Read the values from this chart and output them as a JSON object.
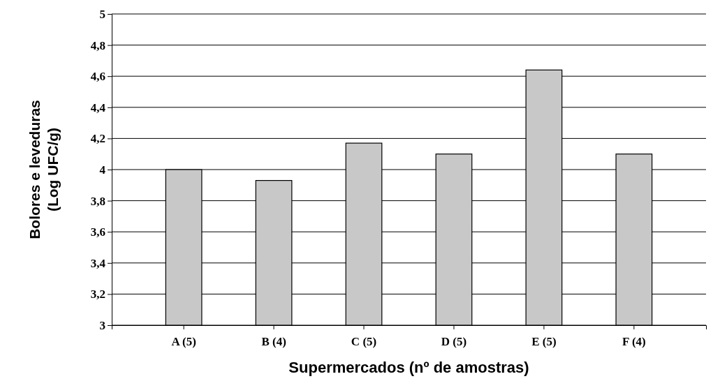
{
  "chart_data": {
    "type": "bar",
    "xlabel": "Supermercados (nº de amostras)",
    "ylabel": "Bolores e leveduras\n(Log UFC/g)",
    "categories": [
      "A (5)",
      "B (4)",
      "C (5)",
      "D (5)",
      "E (5)",
      "F (4)"
    ],
    "values": [
      4.0,
      3.93,
      4.17,
      4.1,
      4.64,
      4.1
    ],
    "color": "#c8c8c8",
    "ylim": [
      3,
      5
    ],
    "yticks": [
      3,
      {
        "value": 3.2,
        "label": "3,2"
      },
      {
        "value": 3.4,
        "label": "3,4"
      },
      {
        "value": 3.6,
        "label": "3,6"
      },
      {
        "value": 3.8,
        "label": "3,8"
      },
      4,
      {
        "value": 4.2,
        "label": "4,2"
      },
      {
        "value": 4.4,
        "label": "4,4"
      },
      {
        "value": 4.6,
        "label": "4,6"
      },
      {
        "value": 4.8,
        "label": "4,8"
      },
      5
    ],
    "grid": "y"
  }
}
